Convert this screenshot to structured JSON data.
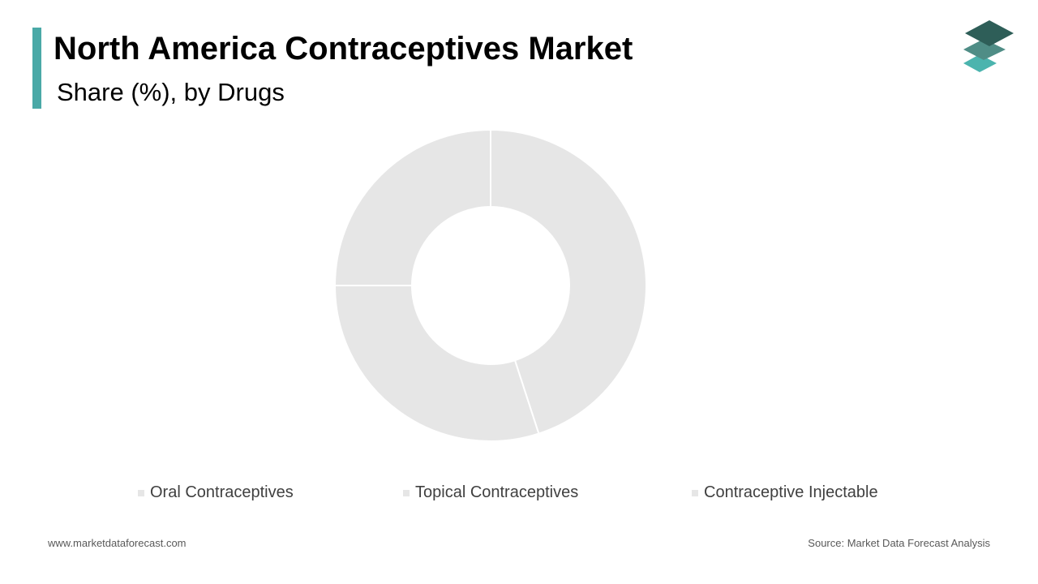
{
  "header": {
    "title": "North America Contraceptives Market",
    "subtitle": "Share (%), by Drugs"
  },
  "colors": {
    "accent": "#4aa9a7",
    "slice_fill": "#e6e6e6",
    "slice_stroke": "#ffffff",
    "logo_top": "#2e5e58",
    "logo_mid": "#4f8d86",
    "logo_bottom": "#4bb4ae"
  },
  "logo": {
    "icon": "stacked-layers-icon"
  },
  "chart_data": {
    "type": "pie",
    "donut": true,
    "title": "",
    "categories": [
      "Oral Contraceptives",
      "Topical Contraceptives",
      "Contraceptive Injectable"
    ],
    "values": [
      45,
      30,
      25
    ],
    "legend_position": "bottom"
  },
  "footer": {
    "website": "www.marketdataforecast.com",
    "source": "Source: Market Data Forecast Analysis"
  }
}
